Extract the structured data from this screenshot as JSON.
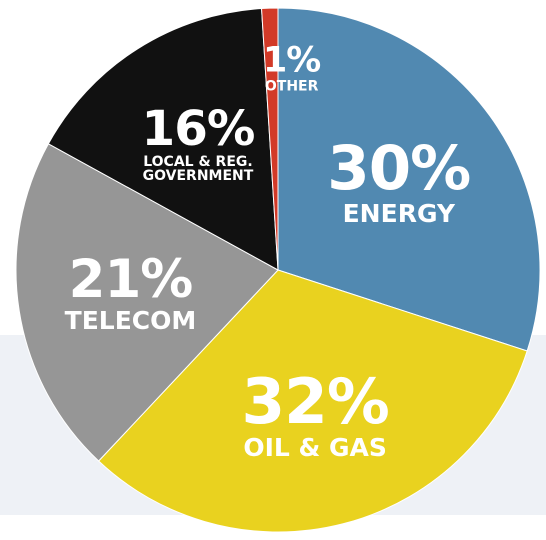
{
  "chart_data": {
    "type": "pie",
    "categories": [
      "ENERGY",
      "OIL & GAS",
      "TELECOM",
      "LOCAL & REG. GOVERNMENT",
      "OTHER"
    ],
    "values": [
      30,
      32,
      21,
      16,
      1
    ],
    "value_labels": [
      "30%",
      "32%",
      "21%",
      "16%",
      "1%"
    ],
    "colors": [
      "#5189b1",
      "#e9d21f",
      "#969696",
      "#111111",
      "#d23a28"
    ]
  }
}
